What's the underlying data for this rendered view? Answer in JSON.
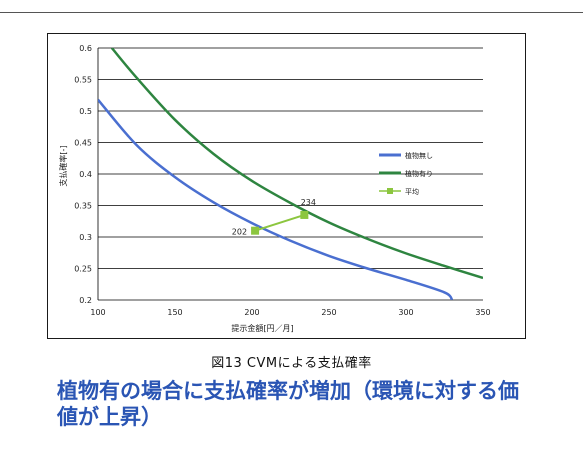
{
  "chart_data": {
    "type": "line",
    "xlabel": "提示金額[円／月]",
    "ylabel": "支払確率[-]",
    "xlim": [
      100,
      350
    ],
    "ylim": [
      0.2,
      0.6
    ],
    "x_ticks": [
      "100",
      "150",
      "200",
      "250",
      "300",
      "350"
    ],
    "y_ticks": [
      "0.2",
      "0.25",
      "0.3",
      "0.35",
      "0.4",
      "0.45",
      "0.5",
      "0.55",
      "0.6"
    ],
    "grid": "horizontal",
    "legend_position": "right",
    "series": [
      {
        "name": "植物無し",
        "color": "#4a6fd0",
        "x": [
          100,
          125,
          150,
          175,
          200,
          225,
          250,
          275,
          300,
          325,
          330
        ],
        "y": [
          0.518,
          0.446,
          0.395,
          0.355,
          0.322,
          0.294,
          0.27,
          0.25,
          0.232,
          0.212,
          0.2
        ]
      },
      {
        "name": "植物有り",
        "color": "#2e8540",
        "x": [
          109,
          125,
          150,
          175,
          200,
          225,
          250,
          275,
          300,
          325,
          350
        ],
        "y": [
          0.6,
          0.553,
          0.486,
          0.432,
          0.389,
          0.354,
          0.323,
          0.297,
          0.274,
          0.254,
          0.235
        ]
      },
      {
        "name": "平均",
        "color": "#8cc63f",
        "x": [
          202,
          234
        ],
        "y": [
          0.31,
          0.335
        ],
        "labels": [
          "202",
          "234"
        ]
      }
    ]
  },
  "caption": "図13  CVMによる支払確率",
  "headline_line1": "植物有の場合に支払確率が増加（環境に対する価",
  "headline_line2": "値が上昇）"
}
